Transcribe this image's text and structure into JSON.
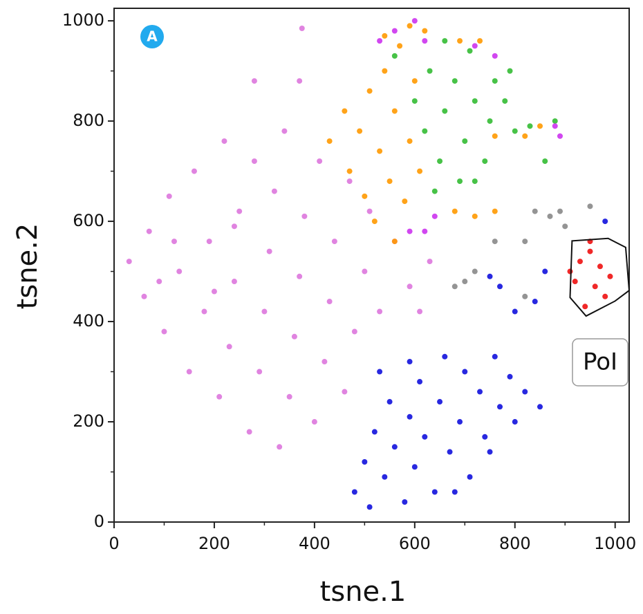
{
  "chart_data": {
    "type": "scatter",
    "xlabel": "tsne.1",
    "ylabel": "tsne.2",
    "xlim": [
      0,
      1028
    ],
    "ylim": [
      0,
      1025
    ],
    "xticks": [
      0,
      200,
      400,
      600,
      800,
      1000
    ],
    "yticks": [
      0,
      200,
      400,
      600,
      800,
      1000
    ],
    "xminorticks": [
      100,
      300,
      500,
      700,
      900
    ],
    "yminorticks": [
      100,
      300,
      500,
      700,
      900
    ],
    "panel_label": "A",
    "series": [
      {
        "color": "#dd77dd",
        "x": [
          30,
          60,
          70,
          100,
          110,
          130,
          150,
          160,
          180,
          190,
          210,
          220,
          230,
          240,
          250,
          270,
          280,
          290,
          300,
          310,
          320,
          330,
          340,
          350,
          360,
          370,
          380,
          400,
          410,
          420,
          430,
          440,
          460,
          470,
          480,
          500,
          510,
          530,
          560,
          590,
          610,
          630,
          370,
          375,
          280,
          240,
          200,
          120,
          90
        ],
        "y": [
          520,
          450,
          580,
          380,
          650,
          500,
          300,
          700,
          420,
          560,
          250,
          760,
          350,
          480,
          620,
          180,
          720,
          300,
          420,
          540,
          660,
          150,
          780,
          250,
          370,
          490,
          610,
          200,
          720,
          320,
          440,
          560,
          260,
          680,
          380,
          500,
          620,
          420,
          560,
          470,
          420,
          520,
          880,
          985,
          880,
          590,
          460,
          560,
          480
        ]
      },
      {
        "color": "#ff9900",
        "x": [
          430,
          460,
          470,
          490,
          500,
          510,
          520,
          530,
          540,
          550,
          560,
          570,
          580,
          590,
          600,
          610,
          560,
          540,
          620,
          680,
          720,
          760,
          690,
          730,
          850,
          820,
          760,
          590
        ],
        "y": [
          760,
          820,
          700,
          780,
          650,
          860,
          600,
          740,
          900,
          680,
          820,
          950,
          640,
          760,
          880,
          700,
          560,
          970,
          980,
          620,
          610,
          620,
          960,
          960,
          790,
          770,
          770,
          990
        ]
      },
      {
        "color": "#33bb33",
        "x": [
          600,
          620,
          630,
          650,
          660,
          680,
          690,
          700,
          710,
          720,
          740,
          750,
          760,
          780,
          790,
          720,
          640,
          800,
          860,
          830,
          880,
          560,
          660
        ],
        "y": [
          840,
          780,
          900,
          720,
          820,
          880,
          680,
          760,
          940,
          840,
          720,
          800,
          880,
          840,
          900,
          680,
          660,
          780,
          720,
          790,
          800,
          930,
          960
        ]
      },
      {
        "color": "#cc33ee",
        "x": [
          560,
          600,
          620,
          590,
          620,
          640,
          720,
          760,
          880,
          890,
          530
        ],
        "y": [
          980,
          1000,
          960,
          580,
          580,
          610,
          950,
          930,
          790,
          770,
          960
        ]
      },
      {
        "color": "#1111dd",
        "x": [
          480,
          500,
          510,
          520,
          540,
          550,
          560,
          580,
          590,
          600,
          610,
          620,
          640,
          650,
          660,
          670,
          690,
          700,
          710,
          730,
          740,
          760,
          770,
          790,
          800,
          820,
          850,
          590,
          530,
          770,
          800,
          840,
          860,
          750,
          980,
          750,
          680
        ],
        "y": [
          60,
          120,
          30,
          180,
          90,
          240,
          150,
          40,
          210,
          110,
          280,
          170,
          60,
          240,
          330,
          140,
          200,
          300,
          90,
          260,
          170,
          330,
          230,
          290,
          200,
          260,
          230,
          320,
          300,
          470,
          420,
          440,
          500,
          490,
          600,
          140,
          60
        ]
      },
      {
        "color": "#888888",
        "x": [
          700,
          720,
          680,
          760,
          870,
          890,
          900,
          840,
          820,
          820,
          950
        ],
        "y": [
          480,
          500,
          470,
          560,
          610,
          620,
          590,
          620,
          560,
          450,
          630
        ]
      },
      {
        "color": "#ee1111",
        "x": [
          930,
          950,
          920,
          960,
          980,
          940,
          990,
          970,
          910,
          950
        ],
        "y": [
          520,
          540,
          480,
          470,
          450,
          430,
          490,
          510,
          500,
          560
        ]
      }
    ],
    "gate": {
      "label": "PoI",
      "x": [
        914,
        986,
        1021,
        1028,
        1000,
        942,
        910
      ],
      "y": [
        561,
        566,
        548,
        462,
        441,
        411,
        448
      ]
    }
  }
}
